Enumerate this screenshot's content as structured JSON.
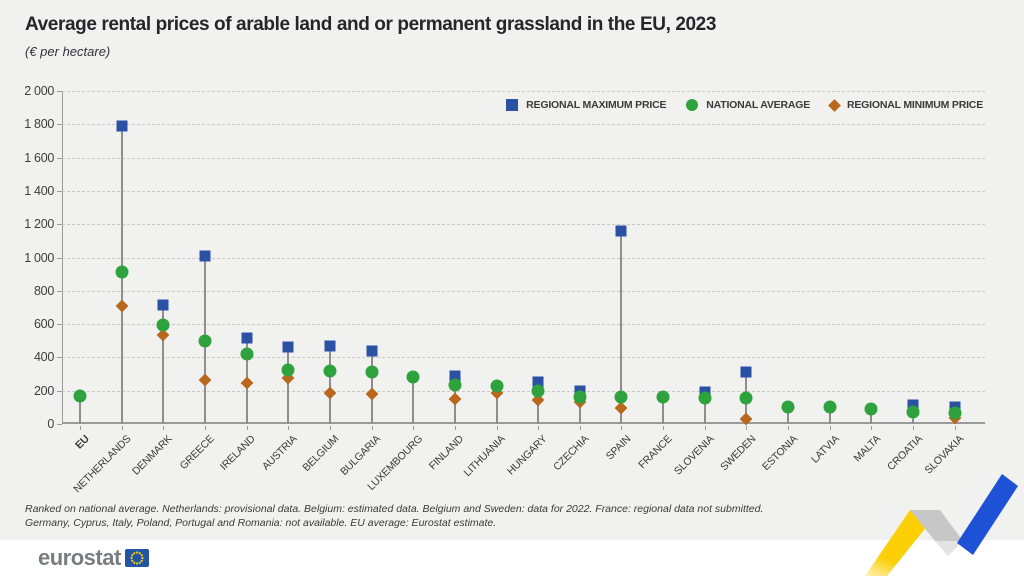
{
  "header": {
    "title": "Average rental prices of arable land and or permanent grassland in the EU, 2023",
    "subtitle": "(€ per hectare)"
  },
  "legend": [
    {
      "label": "REGIONAL MAXIMUM PRICE",
      "marker": "square",
      "color": "#2b51a5"
    },
    {
      "label": "NATIONAL AVERAGE",
      "marker": "circle",
      "color": "#2da23d"
    },
    {
      "label": "REGIONAL MINIMUM PRICE",
      "marker": "diamond",
      "color": "#b8671c"
    }
  ],
  "chart_data": {
    "type": "scatter",
    "title": "Average rental prices of arable land and or permanent grassland in the EU, 2023",
    "ylabel": "€ per hectare",
    "ylim": [
      0,
      2000
    ],
    "ytick_step": 200,
    "yticks": [
      0,
      200,
      400,
      600,
      800,
      1000,
      1200,
      1400,
      1600,
      1800,
      2000
    ],
    "grid": "horizontal-dashed",
    "legend_position": "top-right",
    "bold_category": "EU",
    "categories": [
      "EU",
      "NETHERLANDS",
      "DENMARK",
      "GREECE",
      "IRELAND",
      "AUSTRIA",
      "BELGIUM",
      "BULGARIA",
      "LUXEMBOURG",
      "FINLAND",
      "LITHUANIA",
      "HUNGARY",
      "CZECHIA",
      "SPAIN",
      "FRANCE",
      "SLOVENIA",
      "SWEDEN",
      "ESTONIA",
      "LATVIA",
      "MALTA",
      "CROATIA",
      "SLOVAKIA"
    ],
    "series": [
      {
        "name": "Regional maximum price",
        "marker": "square",
        "color": "#2b51a5",
        "values": [
          null,
          1790,
          715,
          1010,
          515,
          465,
          470,
          440,
          null,
          290,
          null,
          250,
          200,
          1160,
          null,
          190,
          310,
          null,
          null,
          null,
          115,
          105
        ]
      },
      {
        "name": "National average",
        "marker": "circle",
        "color": "#2da23d",
        "values": [
          170,
          910,
          595,
          500,
          420,
          325,
          320,
          315,
          285,
          235,
          230,
          200,
          160,
          160,
          160,
          155,
          155,
          105,
          105,
          90,
          75,
          65
        ]
      },
      {
        "name": "Regional minimum price",
        "marker": "diamond",
        "color": "#b8671c",
        "values": [
          null,
          710,
          535,
          265,
          245,
          275,
          185,
          180,
          null,
          150,
          185,
          145,
          130,
          95,
          null,
          null,
          30,
          null,
          null,
          null,
          null,
          35
        ]
      }
    ]
  },
  "footnotes": [
    "Ranked on national average. Netherlands: provisional data. Belgium: estimated data. Belgium and Sweden: data for 2022. France: regional data not submitted.",
    "Germany, Cyprus, Italy, Poland, Portugal and Romania: not available. EU average: Eurostat estimate."
  ],
  "footer": {
    "logo_text": "eurostat"
  },
  "colors": {
    "background": "#f1f1ef",
    "regional_maximum": "#2b51a5",
    "national_average": "#2da23d",
    "regional_minimum": "#b8671c",
    "ribbon_yellow": "#fccf07",
    "ribbon_blue": "#1d52d6",
    "ribbon_gray": "#c7c7c7",
    "eu_flag_blue": "#2255a4",
    "eu_star_yellow": "#ffcc00"
  }
}
